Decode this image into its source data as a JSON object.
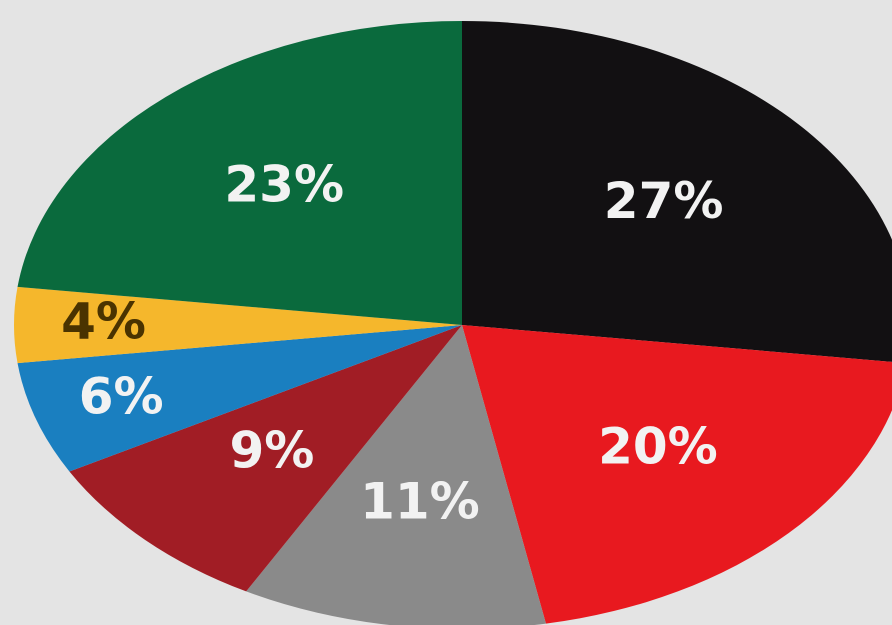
{
  "chart_data": {
    "type": "pie",
    "values": [
      27,
      20,
      11,
      9,
      6,
      4,
      23
    ],
    "value_labels": [
      "27%",
      "20%",
      "11%",
      "9%",
      "6%",
      "4%",
      "23%"
    ],
    "colors": [
      "#121012",
      "#e8191f",
      "#8a8a8a",
      "#a11d25",
      "#1a7fc0",
      "#f5b72c",
      "#0a6a3d"
    ],
    "start_angle": 90,
    "direction": "clockwise"
  }
}
